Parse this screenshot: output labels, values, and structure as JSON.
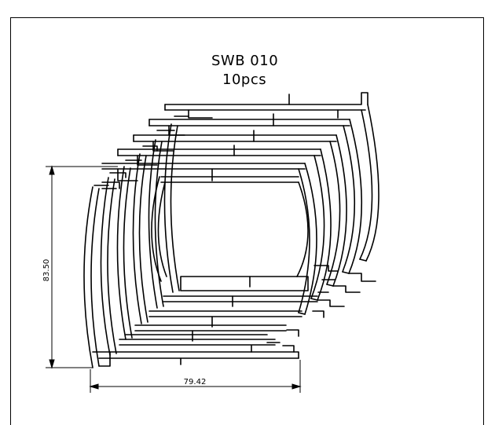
{
  "title": {
    "model": "SWB 010",
    "quantity": "10pcs"
  },
  "dimensions": {
    "height_label": "83.50",
    "width_label": "79.42"
  },
  "colors": {
    "stroke": "#000000",
    "background": "#ffffff"
  }
}
